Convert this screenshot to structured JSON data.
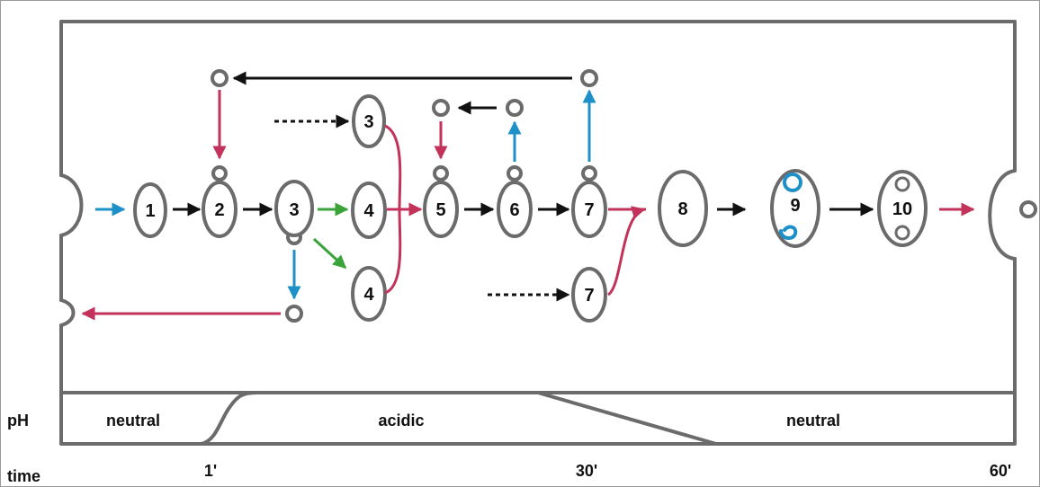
{
  "stages": [
    {
      "id": "s1",
      "label": "1"
    },
    {
      "id": "s2",
      "label": "2"
    },
    {
      "id": "s3",
      "label": "3"
    },
    {
      "id": "s3-upper",
      "label": "3"
    },
    {
      "id": "s4",
      "label": "4"
    },
    {
      "id": "s4-lower",
      "label": "4"
    },
    {
      "id": "s5",
      "label": "5"
    },
    {
      "id": "s6",
      "label": "6"
    },
    {
      "id": "s7",
      "label": "7"
    },
    {
      "id": "s7-lower",
      "label": "7"
    },
    {
      "id": "s8",
      "label": "8"
    },
    {
      "id": "s9",
      "label": "9"
    },
    {
      "id": "s10",
      "label": "10"
    }
  ],
  "ph_track": {
    "row_label": "pH",
    "phases": [
      "neutral",
      "acidic",
      "neutral"
    ]
  },
  "time_axis": {
    "row_label": "time",
    "ticks": [
      "1'",
      "30'",
      "60'"
    ]
  },
  "colors": {
    "outline": "#6b6b6b",
    "black_arrow": "#111111",
    "blue_arrow": "#1e90c8",
    "red_arrow": "#c2325a",
    "green_arrow": "#3aa33a"
  }
}
